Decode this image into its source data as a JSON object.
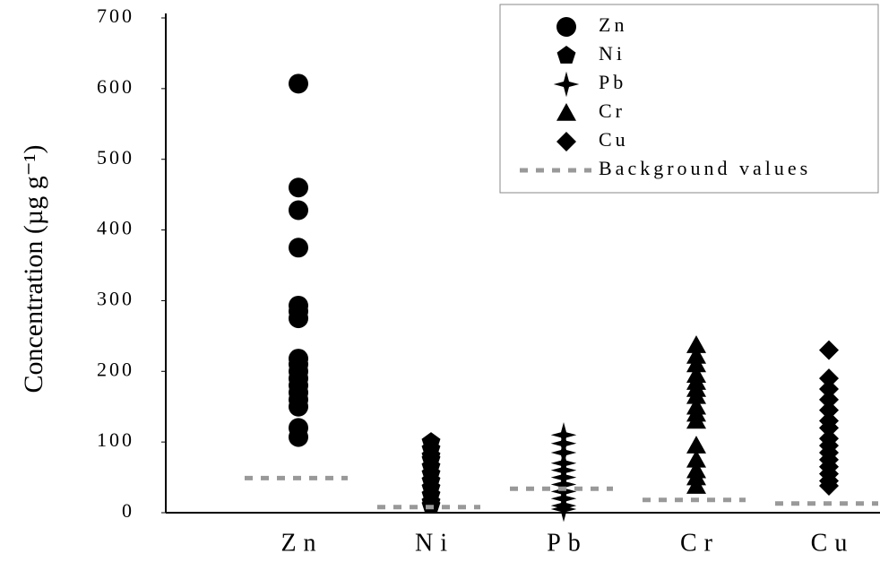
{
  "chart_data": {
    "type": "strip",
    "y_label": "Concentration (µg g⁻¹)",
    "categories": [
      "Zn",
      "Ni",
      "Pb",
      "Cr",
      "Cu"
    ],
    "series": [
      {
        "name": "Zn",
        "marker": "circle",
        "color": "#000000",
        "values": [
          607,
          460,
          428,
          375,
          293,
          285,
          275,
          218,
          210,
          200,
          190,
          180,
          170,
          160,
          150,
          120,
          107
        ]
      },
      {
        "name": "Ni",
        "marker": "pentagon",
        "color": "#000000",
        "values": [
          100,
          90,
          80,
          75,
          65,
          55,
          45,
          35,
          25,
          15,
          10
        ]
      },
      {
        "name": "Pb",
        "marker": "star",
        "color": "#000000",
        "values": [
          110,
          98,
          85,
          70,
          60,
          50,
          40,
          30,
          20,
          10,
          5
        ]
      },
      {
        "name": "Cr",
        "marker": "triangle",
        "color": "#000000",
        "values": [
          237,
          222,
          210,
          195,
          185,
          175,
          165,
          150,
          140,
          130,
          95,
          75,
          60,
          50,
          38
        ]
      },
      {
        "name": "Cu",
        "marker": "diamond",
        "color": "#000000",
        "values": [
          230,
          190,
          175,
          160,
          145,
          130,
          120,
          105,
          95,
          85,
          75,
          65,
          55,
          45,
          38
        ]
      }
    ],
    "background": {
      "name": "Background values",
      "color": "#999999",
      "values": [
        49,
        8,
        34,
        18,
        13
      ]
    },
    "ylim": [
      0,
      700
    ],
    "yticks": [
      0,
      100,
      200,
      300,
      400,
      500,
      600,
      700
    ],
    "legend": "upper-right",
    "grid": false
  }
}
